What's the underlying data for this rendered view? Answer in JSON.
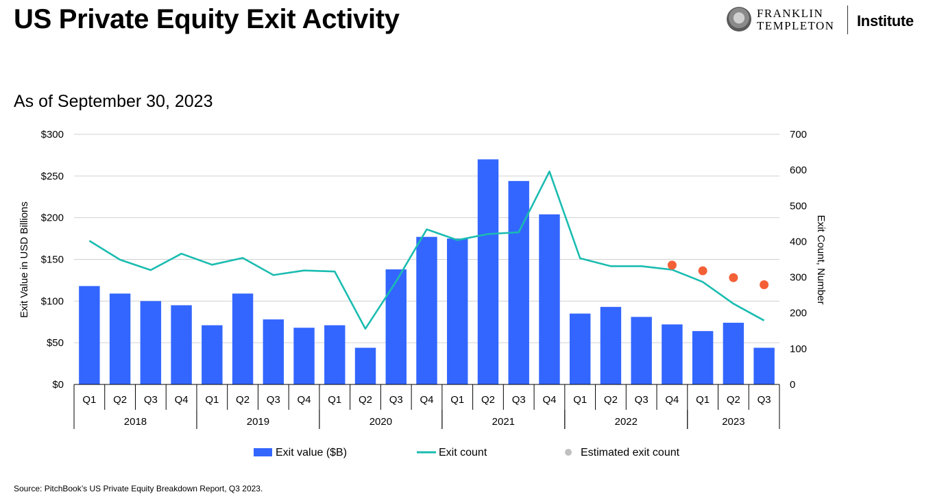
{
  "header": {
    "title": "US Private Equity Exit Activity",
    "subtitle": "As of September 30, 2023"
  },
  "logo": {
    "line1": "FRANKLIN",
    "line2": "TEMPLETON",
    "institute": "Institute"
  },
  "footer": {
    "source": "Source: PitchBook’s US Private Equity Breakdown Report, Q3 2023."
  },
  "colors": {
    "bar": "#3366ff",
    "line": "#1abcb0",
    "estimate": "#f46036",
    "legend_estimate_marker": "#c0c0c0",
    "grid": "#d0d0d0",
    "axis": "#000000"
  },
  "chart_data": {
    "type": "bar",
    "title": "US Private Equity Exit Activity",
    "subtitle": "As of September 30, 2023",
    "ylabel": "Exit Value in USD Billions",
    "y2label": "Exit Count, Number",
    "ylim": [
      0,
      300
    ],
    "y2lim": [
      0,
      700
    ],
    "yticks": [
      "$0",
      "$50",
      "$100",
      "$150",
      "$200",
      "$250",
      "$300"
    ],
    "y2ticks": [
      "0",
      "100",
      "200",
      "300",
      "400",
      "500",
      "600",
      "700"
    ],
    "grid": true,
    "legend_position": "bottom",
    "quarters": [
      "Q1",
      "Q2",
      "Q3",
      "Q4",
      "Q1",
      "Q2",
      "Q3",
      "Q4",
      "Q1",
      "Q2",
      "Q3",
      "Q4",
      "Q1",
      "Q2",
      "Q3",
      "Q4",
      "Q1",
      "Q2",
      "Q3",
      "Q4",
      "Q1",
      "Q2",
      "Q3"
    ],
    "years": [
      {
        "label": "2018",
        "count": 4
      },
      {
        "label": "2019",
        "count": 4
      },
      {
        "label": "2020",
        "count": 4
      },
      {
        "label": "2021",
        "count": 4
      },
      {
        "label": "2022",
        "count": 4
      },
      {
        "label": "2023",
        "count": 3
      }
    ],
    "series": [
      {
        "name": "Exit value ($B)",
        "kind": "bar",
        "axis": "left",
        "values": [
          118,
          109,
          100,
          95,
          71,
          109,
          78,
          68,
          71,
          44,
          138,
          177,
          175,
          270,
          244,
          204,
          85,
          93,
          81,
          72,
          64,
          74,
          44
        ]
      },
      {
        "name": "Exit count",
        "kind": "line",
        "axis": "right",
        "values": [
          402,
          349,
          320,
          366,
          335,
          354,
          306,
          319,
          316,
          156,
          288,
          434,
          404,
          421,
          426,
          596,
          353,
          331,
          331,
          321,
          287,
          226,
          179
        ]
      },
      {
        "name": "Estimated exit count",
        "kind": "scatter",
        "axis": "right",
        "start_index": 19,
        "values": [
          334,
          318,
          299,
          279
        ]
      }
    ]
  }
}
